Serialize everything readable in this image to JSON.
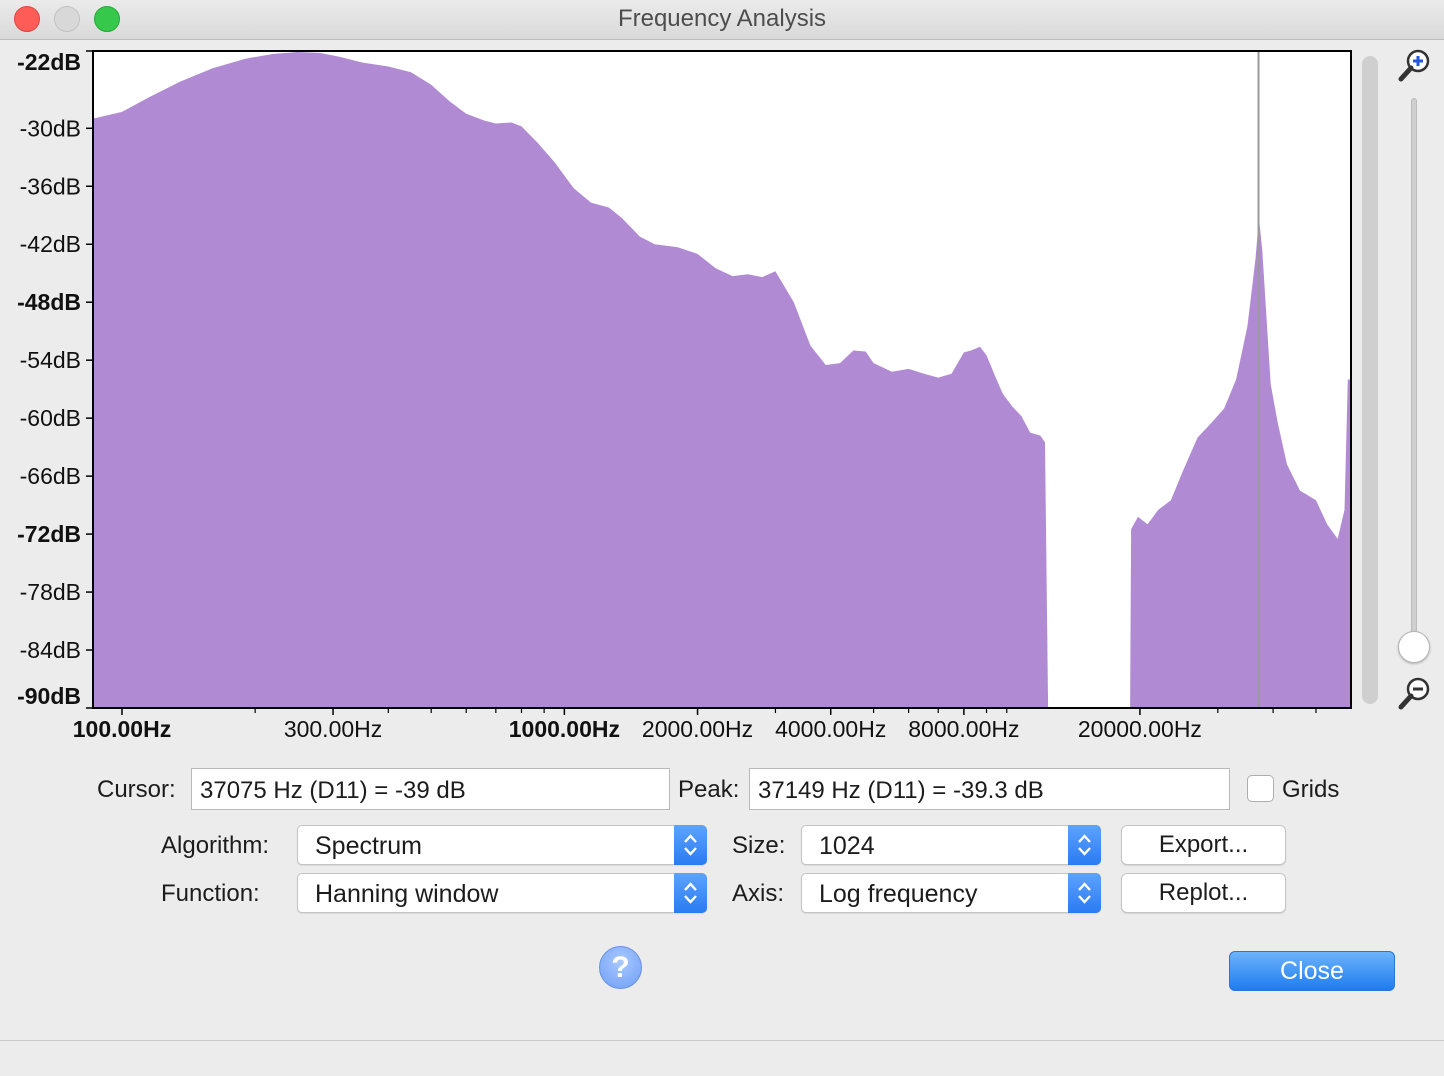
{
  "window": {
    "title": "Frequency Analysis"
  },
  "chart_data": {
    "type": "area",
    "y_unit": "dB",
    "ylim": [
      -90,
      -22
    ],
    "y_ticks": [
      {
        "value": -22,
        "label": "-22dB",
        "bold": true
      },
      {
        "value": -30,
        "label": "-30dB",
        "bold": false
      },
      {
        "value": -36,
        "label": "-36dB",
        "bold": false
      },
      {
        "value": -42,
        "label": "-42dB",
        "bold": false
      },
      {
        "value": -48,
        "label": "-48dB",
        "bold": true
      },
      {
        "value": -54,
        "label": "-54dB",
        "bold": false
      },
      {
        "value": -60,
        "label": "-60dB",
        "bold": false
      },
      {
        "value": -66,
        "label": "-66dB",
        "bold": false
      },
      {
        "value": -72,
        "label": "-72dB",
        "bold": true
      },
      {
        "value": -78,
        "label": "-78dB",
        "bold": false
      },
      {
        "value": -84,
        "label": "-84dB",
        "bold": false
      },
      {
        "value": -90,
        "label": "-90dB",
        "bold": true
      }
    ],
    "x_scale": "log",
    "xlim": [
      86,
      60000
    ],
    "x_ticks": [
      {
        "value": 100,
        "label": "100.00Hz",
        "bold": true
      },
      {
        "value": 300,
        "label": "300.00Hz",
        "bold": false
      },
      {
        "value": 1000,
        "label": "1000.00Hz",
        "bold": true
      },
      {
        "value": 2000,
        "label": "2000.00Hz",
        "bold": false
      },
      {
        "value": 4000,
        "label": "4000.00Hz",
        "bold": false
      },
      {
        "value": 8000,
        "label": "8000.00Hz",
        "bold": false
      },
      {
        "value": 20000,
        "label": "20000.00Hz",
        "bold": false
      }
    ],
    "x_minor_ticks": [
      200,
      400,
      500,
      600,
      700,
      800,
      900,
      3000,
      5000,
      6000,
      7000,
      9000,
      10000,
      30000,
      40000,
      50000
    ],
    "series": [
      {
        "color": "#b08bd3",
        "points": [
          [
            86,
            -29
          ],
          [
            100,
            -28.3
          ],
          [
            115,
            -26.8
          ],
          [
            135,
            -25.2
          ],
          [
            160,
            -23.8
          ],
          [
            190,
            -22.8
          ],
          [
            220,
            -22.3
          ],
          [
            250,
            -22.1
          ],
          [
            280,
            -22.2
          ],
          [
            310,
            -22.6
          ],
          [
            350,
            -23.2
          ],
          [
            400,
            -23.6
          ],
          [
            450,
            -24.2
          ],
          [
            500,
            -25.5
          ],
          [
            550,
            -27.2
          ],
          [
            600,
            -28.5
          ],
          [
            660,
            -29.2
          ],
          [
            700,
            -29.5
          ],
          [
            760,
            -29.4
          ],
          [
            800,
            -29.8
          ],
          [
            870,
            -31.5
          ],
          [
            950,
            -33.5
          ],
          [
            1050,
            -36.2
          ],
          [
            1150,
            -37.7
          ],
          [
            1260,
            -38.2
          ],
          [
            1350,
            -39.3
          ],
          [
            1480,
            -41.2
          ],
          [
            1600,
            -42.0
          ],
          [
            1800,
            -42.3
          ],
          [
            2000,
            -43.0
          ],
          [
            2200,
            -44.5
          ],
          [
            2400,
            -45.3
          ],
          [
            2600,
            -45.1
          ],
          [
            2800,
            -45.4
          ],
          [
            3000,
            -44.8
          ],
          [
            3300,
            -48.0
          ],
          [
            3600,
            -52.5
          ],
          [
            3900,
            -54.5
          ],
          [
            4200,
            -54.3
          ],
          [
            4500,
            -53.0
          ],
          [
            4800,
            -53.1
          ],
          [
            5000,
            -54.3
          ],
          [
            5500,
            -55.2
          ],
          [
            6000,
            -54.9
          ],
          [
            6500,
            -55.4
          ],
          [
            7000,
            -55.8
          ],
          [
            7500,
            -55.4
          ],
          [
            8000,
            -53.2
          ],
          [
            8300,
            -53.0
          ],
          [
            8700,
            -52.6
          ],
          [
            9000,
            -53.5
          ],
          [
            9400,
            -55.6
          ],
          [
            9800,
            -57.5
          ],
          [
            10300,
            -58.8
          ],
          [
            10800,
            -59.8
          ],
          [
            11300,
            -61.5
          ],
          [
            11900,
            -61.8
          ],
          [
            12200,
            -62.5
          ],
          [
            12400,
            -90
          ],
          [
            19000,
            -90
          ],
          [
            19100,
            -71.5
          ],
          [
            19800,
            -70.2
          ],
          [
            20800,
            -71.0
          ],
          [
            22000,
            -69.5
          ],
          [
            23500,
            -68.5
          ],
          [
            25000,
            -65.5
          ],
          [
            27000,
            -62.0
          ],
          [
            29000,
            -60.5
          ],
          [
            31000,
            -59.0
          ],
          [
            33000,
            -56.0
          ],
          [
            35000,
            -50.5
          ],
          [
            36500,
            -43.5
          ],
          [
            37150,
            -39.3
          ],
          [
            37800,
            -42.5
          ],
          [
            39500,
            -56.5
          ],
          [
            41000,
            -60.5
          ],
          [
            43000,
            -64.8
          ],
          [
            46000,
            -67.5
          ],
          [
            50000,
            -68.5
          ],
          [
            53000,
            -71.0
          ],
          [
            56000,
            -72.5
          ],
          [
            58000,
            -69.5
          ],
          [
            59000,
            -56.0
          ],
          [
            60000,
            -56.0
          ]
        ]
      }
    ],
    "cursor_line_hz": 37075,
    "grid": false
  },
  "controls": {
    "cursor_label": "Cursor:",
    "cursor_value": "37075 Hz (D11) = -39 dB",
    "peak_label": "Peak:",
    "peak_value": "37149 Hz (D11) = -39.3 dB",
    "grids_label": "Grids",
    "grids_checked": false,
    "algorithm_label": "Algorithm:",
    "algorithm_value": "Spectrum",
    "function_label": "Function:",
    "function_value": "Hanning window",
    "size_label": "Size:",
    "size_value": "1024",
    "axis_label": "Axis:",
    "axis_value": "Log frequency",
    "export_label": "Export...",
    "replot_label": "Replot...",
    "help_label": "?",
    "close_label": "Close"
  },
  "icons": {
    "zoom_in": "zoom-in-magnifier",
    "zoom_out": "zoom-out-magnifier",
    "help": "question-mark"
  }
}
